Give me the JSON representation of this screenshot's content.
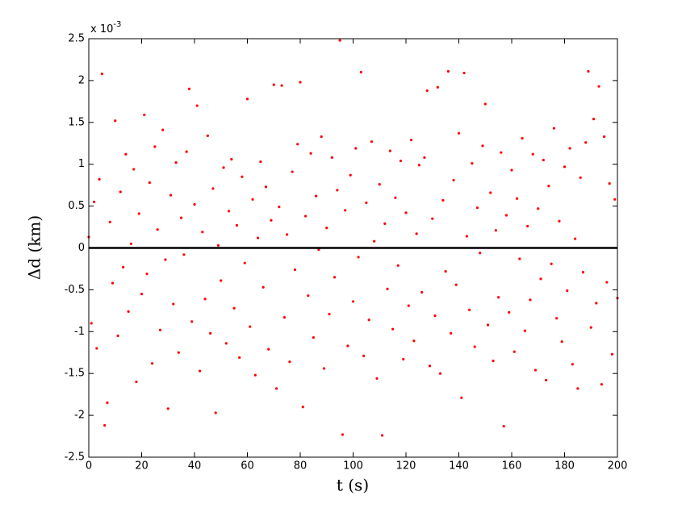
{
  "chart_data": {
    "type": "scatter",
    "xlabel": "t (s)",
    "ylabel": "Δd (km)",
    "y_multiplier_base": "x 10",
    "y_multiplier_exponent": "-3",
    "xlim": [
      0,
      200
    ],
    "xticks": [
      0,
      20,
      40,
      60,
      80,
      100,
      120,
      140,
      160,
      180,
      200
    ],
    "ylim": [
      -2.5,
      2.5
    ],
    "yticks": [
      -2.5,
      -2,
      -1.5,
      -1,
      -0.5,
      0,
      0.5,
      1,
      1.5,
      2,
      2.5
    ],
    "hline": 0,
    "hline_color": "#000000",
    "series": [
      {
        "color": "#ff0000",
        "x": [
          0,
          1,
          2,
          3,
          4,
          5,
          6,
          7,
          8,
          9,
          10,
          11,
          12,
          13,
          14,
          15,
          16,
          17,
          18,
          19,
          20,
          21,
          22,
          23,
          24,
          25,
          26,
          27,
          28,
          29,
          30,
          31,
          32,
          33,
          34,
          35,
          36,
          37,
          38,
          39,
          40,
          41,
          42,
          43,
          44,
          45,
          46,
          47,
          48,
          49,
          50,
          51,
          52,
          53,
          54,
          55,
          56,
          57,
          58,
          59,
          60,
          61,
          62,
          63,
          64,
          65,
          66,
          67,
          68,
          69,
          70,
          71,
          72,
          73,
          74,
          75,
          76,
          77,
          78,
          79,
          80,
          81,
          82,
          83,
          84,
          85,
          86,
          87,
          88,
          89,
          90,
          91,
          92,
          93,
          94,
          95,
          96,
          97,
          98,
          99,
          100,
          101,
          102,
          103,
          104,
          105,
          106,
          107,
          108,
          109,
          110,
          111,
          112,
          113,
          114,
          115,
          116,
          117,
          118,
          119,
          120,
          121,
          122,
          123,
          124,
          125,
          126,
          127,
          128,
          129,
          130,
          131,
          132,
          133,
          134,
          135,
          136,
          137,
          138,
          139,
          140,
          141,
          142,
          143,
          144,
          145,
          146,
          147,
          148,
          149,
          150,
          151,
          152,
          153,
          154,
          155,
          156,
          157,
          158,
          159,
          160,
          161,
          162,
          163,
          164,
          165,
          166,
          167,
          168,
          169,
          170,
          171,
          172,
          173,
          174,
          175,
          176,
          177,
          178,
          179,
          180,
          181,
          182,
          183,
          184,
          185,
          186,
          187,
          188,
          189,
          190,
          191,
          192,
          193,
          194,
          195,
          196,
          197,
          198,
          199,
          200
        ],
        "values": [
          0.13,
          -0.9,
          0.55,
          -1.2,
          0.82,
          2.08,
          -2.12,
          -1.85,
          0.31,
          -0.42,
          1.52,
          -1.05,
          0.67,
          -0.23,
          1.12,
          -0.76,
          0.05,
          0.94,
          -1.6,
          0.41,
          -0.55,
          1.59,
          -0.31,
          0.78,
          -1.38,
          1.21,
          0.22,
          -0.98,
          1.41,
          -0.14,
          -1.92,
          0.63,
          -0.67,
          1.02,
          -1.25,
          0.36,
          -0.08,
          1.15,
          1.9,
          -0.88,
          0.52,
          1.7,
          -1.47,
          0.19,
          -0.61,
          1.34,
          -1.02,
          0.71,
          -1.97,
          0.03,
          -0.39,
          0.96,
          -1.14,
          0.44,
          1.06,
          -0.72,
          0.27,
          -1.31,
          0.85,
          -0.18,
          1.78,
          -0.94,
          0.58,
          -1.52,
          0.12,
          1.03,
          -0.47,
          0.73,
          -1.21,
          0.33,
          1.95,
          -1.68,
          0.49,
          1.94,
          -0.83,
          0.16,
          -1.36,
          0.91,
          -0.26,
          1.24,
          1.98,
          -1.9,
          0.38,
          -0.57,
          1.13,
          -1.07,
          0.62,
          -0.02,
          1.33,
          -1.44,
          0.24,
          -0.79,
          1.08,
          -0.35,
          0.69,
          2.48,
          -2.23,
          0.45,
          -1.17,
          0.87,
          -0.64,
          1.19,
          -0.11,
          2.1,
          -1.29,
          0.54,
          -0.86,
          1.27,
          0.08,
          -1.56,
          0.76,
          -2.24,
          0.29,
          -0.49,
          1.16,
          -0.97,
          0.6,
          -0.21,
          1.04,
          -1.33,
          0.42,
          -0.69,
          1.29,
          -1.11,
          0.17,
          0.99,
          -0.53,
          1.08,
          1.88,
          -1.41,
          0.35,
          -0.81,
          1.92,
          -1.5,
          0.57,
          -0.28,
          2.11,
          -1.02,
          0.81,
          -0.44,
          1.37,
          -1.79,
          2.09,
          0.14,
          -0.74,
          1.01,
          -1.18,
          0.48,
          -0.06,
          1.22,
          1.72,
          -0.92,
          0.66,
          -1.35,
          0.21,
          -0.59,
          1.14,
          -2.13,
          0.39,
          -0.77,
          0.93,
          -1.24,
          0.59,
          -0.13,
          1.31,
          -0.99,
          0.26,
          -0.62,
          1.12,
          -1.46,
          0.47,
          -0.37,
          1.05,
          -1.58,
          0.74,
          -0.19,
          1.43,
          -0.84,
          0.32,
          -1.12,
          0.97,
          -0.51,
          1.19,
          -1.39,
          0.11,
          -1.68,
          0.84,
          -0.29,
          1.26,
          2.11,
          -0.95,
          1.54,
          -0.66,
          1.93,
          -1.63,
          1.33,
          -0.41,
          0.77,
          -1.27,
          0.58,
          -0.6
        ]
      }
    ]
  }
}
